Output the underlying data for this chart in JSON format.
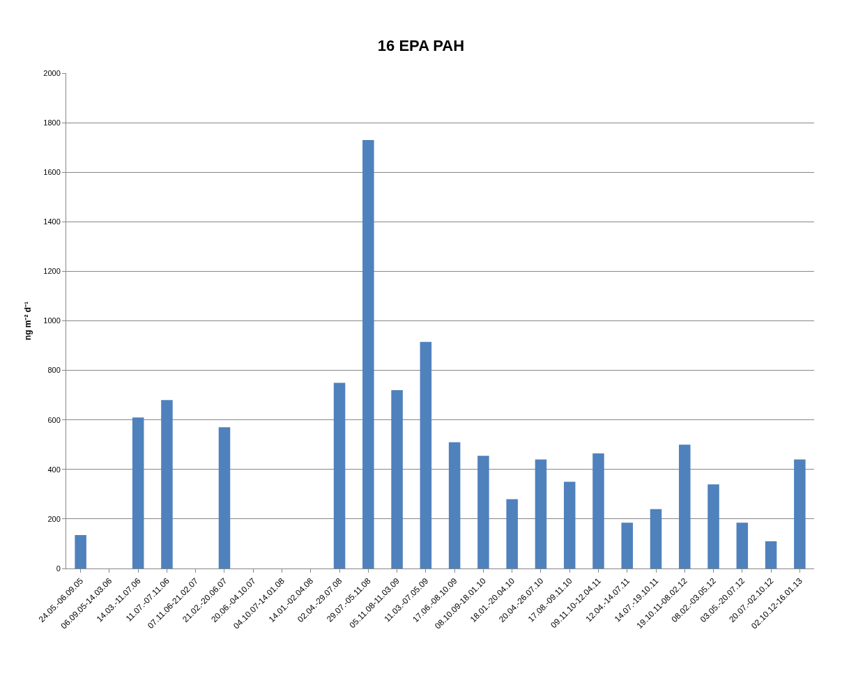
{
  "chart_data": {
    "type": "bar",
    "title": "16 EPA PAH",
    "ylabel": "ng m⁻² d⁻¹",
    "categories": [
      "24.05.-06.09.05",
      "06.09.05-14.03.06",
      "14.03.-11.07.06",
      "11.07.-07.11.06",
      "07.11.06-21.02.07",
      "21.02.-20.06.07",
      "20.06.-04.10.07",
      "04.10.07-14.01.08",
      "14.01.-02.04.08",
      "02.04.-29.07.08",
      "29.07.-05.11.08",
      "05.11.08-11.03.09",
      "11.03.-07.05.09",
      "17.06.-08.10.09",
      "08.10.09-18.01.10",
      "18.01.-20.04.10",
      "20.04.-26.07.10",
      "17.08.-09.11.10",
      "09.11.10-12.04.11",
      "12.04.-14.07.11",
      "14.07.-19.10.11",
      "19.10.11-08.02.12",
      "08.02.-03.05.12",
      "03.05.-20.07.12",
      "20.07.-02.10.12",
      "02.10.12-16.01.13"
    ],
    "values": [
      135,
      null,
      610,
      680,
      null,
      570,
      null,
      null,
      null,
      750,
      1730,
      720,
      915,
      510,
      455,
      280,
      440,
      350,
      465,
      185,
      240,
      500,
      340,
      185,
      110,
      440
    ],
    "color": "#4f81bd",
    "ylim": [
      0,
      2000
    ],
    "yticks": [
      0,
      200,
      400,
      600,
      800,
      1000,
      1200,
      1400,
      1600,
      1800,
      2000
    ],
    "grid": "y",
    "legend": false
  }
}
